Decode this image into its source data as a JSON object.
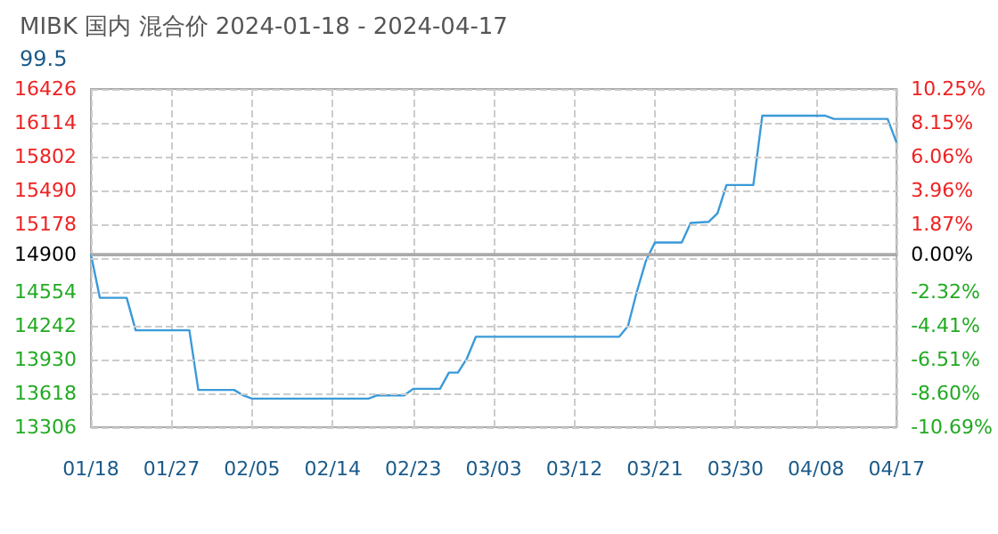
{
  "chart_data": {
    "type": "line",
    "title": "MIBK 国内 混合价 2024-01-18 - 2024-04-17",
    "subtitle": "99.5",
    "x": [
      "2024-01-18",
      "2024-01-19",
      "2024-01-22",
      "2024-01-23",
      "2024-01-29",
      "2024-01-30",
      "2024-02-03",
      "2024-02-04",
      "2024-02-05",
      "2024-02-18",
      "2024-02-19",
      "2024-02-22",
      "2024-02-23",
      "2024-02-26",
      "2024-02-27",
      "2024-02-28",
      "2024-02-29",
      "2024-03-01",
      "2024-03-17",
      "2024-03-18",
      "2024-03-19",
      "2024-03-20",
      "2024-03-21",
      "2024-03-24",
      "2024-03-25",
      "2024-03-27",
      "2024-03-28",
      "2024-03-29",
      "2024-04-01",
      "2024-04-02",
      "2024-04-09",
      "2024-04-10",
      "2024-04-16",
      "2024-04-17"
    ],
    "series": [
      {
        "color": "#3a9ad9",
        "values": [
          14900,
          14500,
          14500,
          14200,
          14200,
          13650,
          13650,
          13600,
          13570,
          13570,
          13600,
          13600,
          13660,
          13660,
          13810,
          13810,
          13940,
          14140,
          14140,
          14240,
          14560,
          14840,
          15010,
          15010,
          15190,
          15200,
          15280,
          15540,
          15540,
          16180,
          16180,
          16150,
          16150,
          15930
        ]
      }
    ],
    "xlim": [
      "2024-01-18",
      "2024-04-17"
    ],
    "xticks": [
      {
        "value": "2024-01-18",
        "label": "01/18"
      },
      {
        "value": "2024-01-27",
        "label": "01/27"
      },
      {
        "value": "2024-02-05",
        "label": "02/05"
      },
      {
        "value": "2024-02-14",
        "label": "02/14"
      },
      {
        "value": "2024-02-23",
        "label": "02/23"
      },
      {
        "value": "2024-03-03",
        "label": "03/03"
      },
      {
        "value": "2024-03-12",
        "label": "03/12"
      },
      {
        "value": "2024-03-21",
        "label": "03/21"
      },
      {
        "value": "2024-03-30",
        "label": "03/30"
      },
      {
        "value": "2024-04-08",
        "label": "04/08"
      },
      {
        "value": "2024-04-17",
        "label": "04/17"
      }
    ],
    "ylim": [
      13306,
      16426
    ],
    "yticks": [
      13306,
      13618,
      13930,
      14242,
      14554,
      {
        "value": 14866,
        "label": null
      },
      15178,
      15490,
      15802,
      16114,
      16426
    ],
    "y2lim": [
      -10.69,
      10.25
    ],
    "y2ticks": [
      {
        "value": -10.69,
        "label": "-10.69%"
      },
      {
        "value": -8.6,
        "label": "-8.60%"
      },
      {
        "value": -6.51,
        "label": "-6.51%"
      },
      {
        "value": -4.41,
        "label": "-4.41%"
      },
      {
        "value": -2.32,
        "label": "-2.32%"
      },
      {
        "value": -0.23,
        "label": null
      },
      {
        "value": 1.87,
        "label": "1.87%"
      },
      {
        "value": 3.96,
        "label": "3.96%"
      },
      {
        "value": 6.06,
        "label": "6.06%"
      },
      {
        "value": 8.15,
        "label": "8.15%"
      },
      {
        "value": 10.25,
        "label": "10.25%"
      }
    ],
    "ref_lines": [
      {
        "axis": "y",
        "value": 14900,
        "label": "14900",
        "color": "#aaaaaa"
      },
      {
        "axis": "y2",
        "value": 0,
        "label": "0.00%",
        "color": "#aaaaaa"
      }
    ],
    "grid": true,
    "marker": "none",
    "line_style": "solid"
  }
}
